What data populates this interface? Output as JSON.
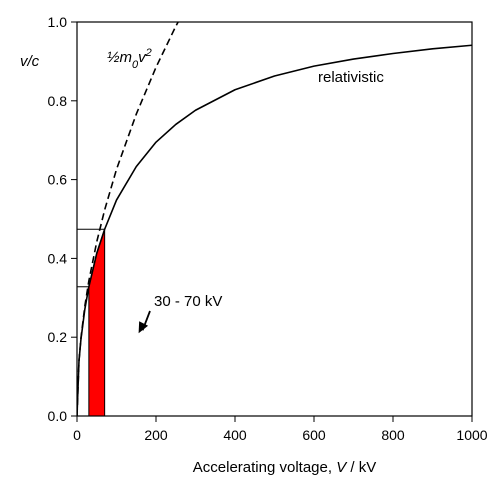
{
  "chart_data": {
    "type": "line",
    "xlabel": "Accelerating voltage, V / kV",
    "xlabel_parts": {
      "pre": "Accelerating voltage, ",
      "var": "V",
      "post": " / kV"
    },
    "ylabel": "v/c",
    "xlim": [
      0,
      1000
    ],
    "ylim": [
      0.0,
      1.0
    ],
    "x_ticks": [
      0,
      200,
      400,
      600,
      800,
      1000
    ],
    "y_ticks": [
      0.0,
      0.2,
      0.4,
      0.6,
      0.8,
      1.0
    ],
    "x_tick_labels": [
      "0",
      "200",
      "400",
      "600",
      "800",
      "1000"
    ],
    "y_tick_labels": [
      "0.0",
      "0.2",
      "0.4",
      "0.6",
      "0.8",
      "1.0"
    ],
    "grid": false,
    "series": [
      {
        "name": "relativistic",
        "style": "solid",
        "x": [
          0,
          5,
          10,
          20,
          30,
          50,
          70,
          100,
          150,
          200,
          250,
          300,
          400,
          500,
          600,
          700,
          800,
          900,
          1000
        ],
        "y": [
          0.0,
          0.139,
          0.195,
          0.272,
          0.328,
          0.413,
          0.474,
          0.548,
          0.633,
          0.695,
          0.74,
          0.776,
          0.828,
          0.863,
          0.888,
          0.906,
          0.92,
          0.932,
          0.941
        ]
      },
      {
        "name": "½m₀v²",
        "style": "dashed",
        "x": [
          0,
          5,
          10,
          20,
          30,
          50,
          70,
          100,
          150,
          200,
          250,
          256
        ],
        "y": [
          0.0,
          0.14,
          0.198,
          0.28,
          0.343,
          0.442,
          0.523,
          0.626,
          0.766,
          0.885,
          0.989,
          1.0
        ]
      }
    ],
    "annotations": [
      {
        "text": "relativistic",
        "series": "relativistic"
      },
      {
        "text_base": "½m",
        "text_sub": "0",
        "text_mid": "v",
        "text_sup": "2",
        "series": "½m₀v²"
      },
      {
        "text": "30 - 70 kV",
        "arrow_to": {
          "x": 80,
          "y": 0.21
        }
      }
    ],
    "highlight": {
      "x_range": [
        30,
        70
      ],
      "color": "#ff0000",
      "top_y": 0.474
    },
    "reference_lines": [
      {
        "y": 0.474,
        "x_range": [
          0,
          70
        ]
      },
      {
        "y": 0.328,
        "x_range": [
          0,
          30
        ]
      }
    ]
  }
}
